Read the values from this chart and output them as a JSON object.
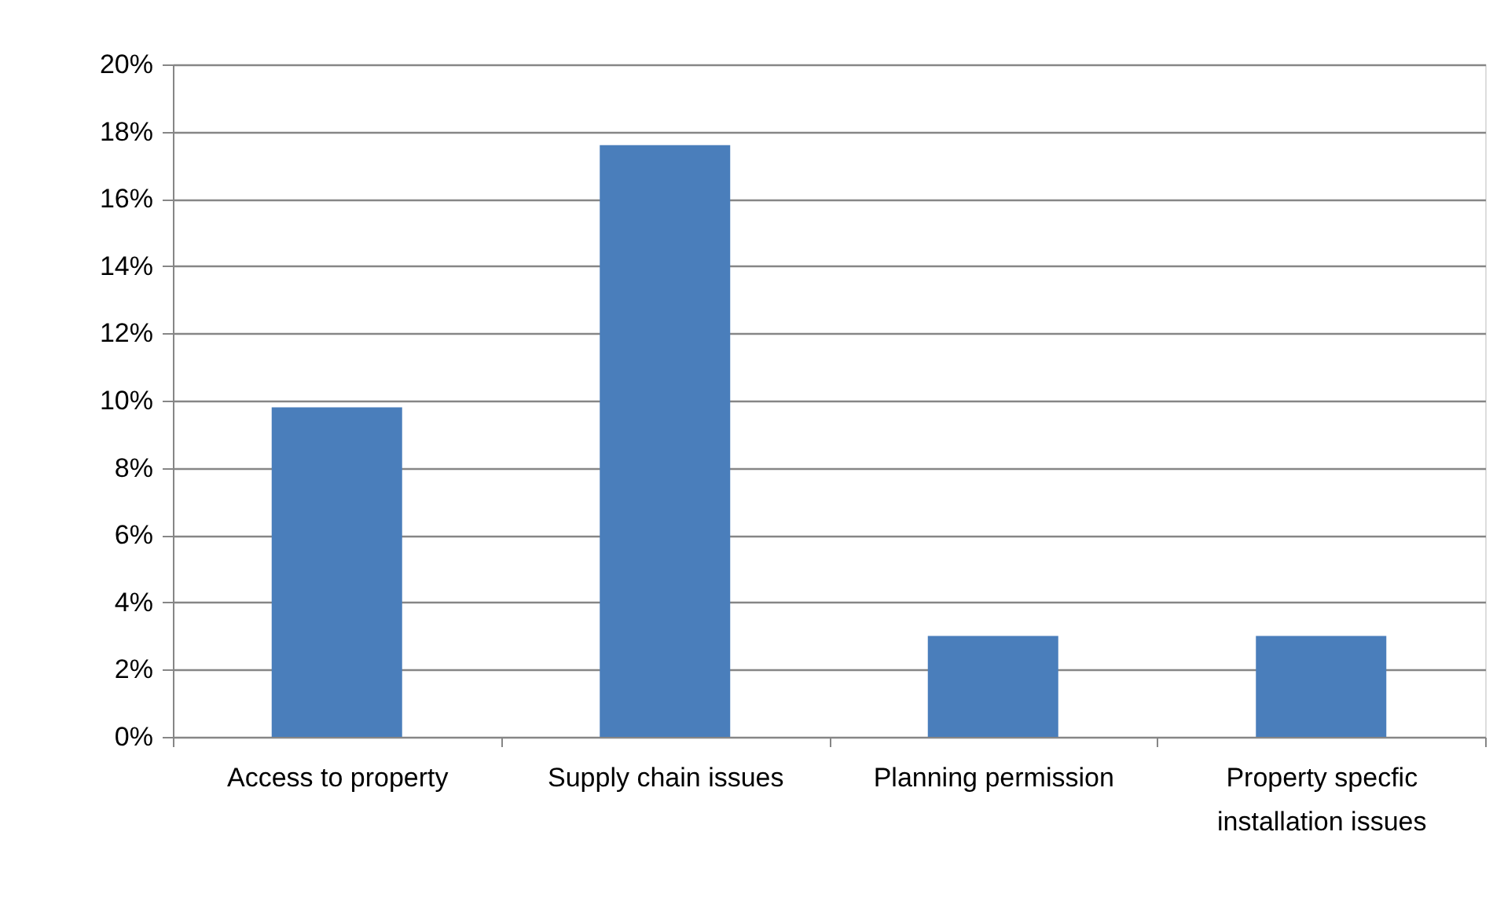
{
  "chart_data": {
    "type": "bar",
    "categories": [
      "Access to property",
      "Supply chain issues",
      "Planning permission",
      "Property specfic installation issues"
    ],
    "values": [
      9.8,
      17.6,
      3.0,
      3.0
    ],
    "color": "#4a7ebb",
    "ylim": [
      0,
      20
    ],
    "yticks": [
      {
        "value": 0,
        "label": "0%"
      },
      {
        "value": 2,
        "label": "2%"
      },
      {
        "value": 4,
        "label": "4%"
      },
      {
        "value": 6,
        "label": "6%"
      },
      {
        "value": 8,
        "label": "8%"
      },
      {
        "value": 10,
        "label": "10%"
      },
      {
        "value": 12,
        "label": "12%"
      },
      {
        "value": 14,
        "label": "14%"
      },
      {
        "value": 16,
        "label": "16%"
      },
      {
        "value": 18,
        "label": "18%"
      },
      {
        "value": 20,
        "label": "20%"
      }
    ],
    "grid": "y"
  }
}
